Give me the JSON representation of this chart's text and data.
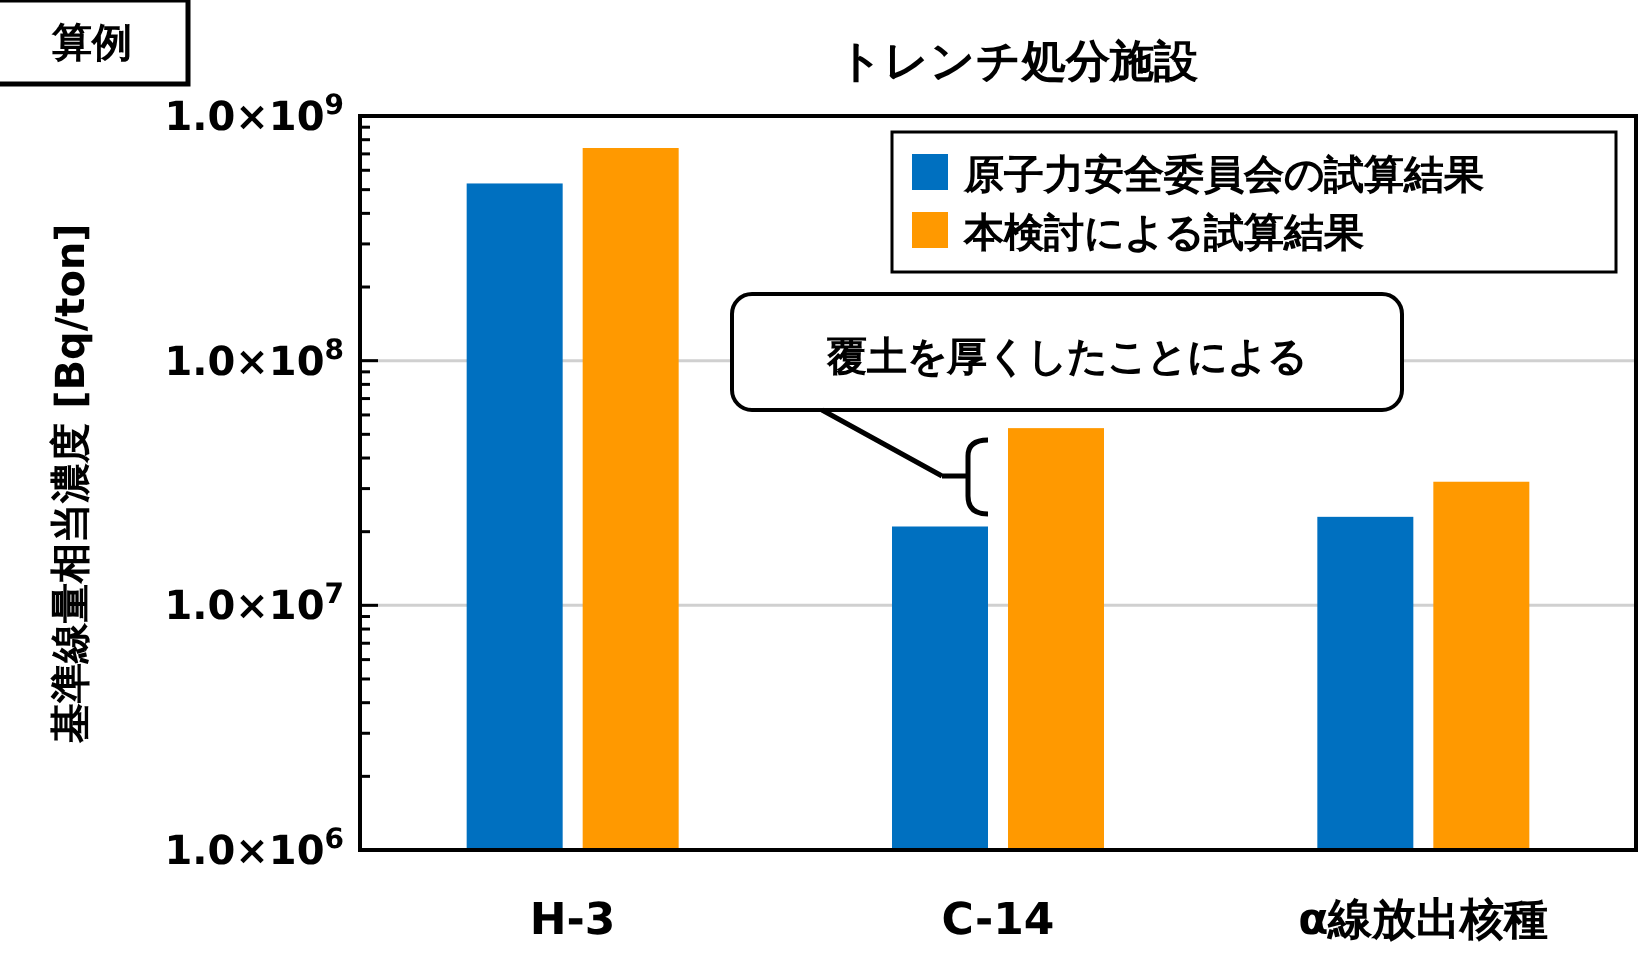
{
  "chart_data": {
    "type": "bar",
    "title": "トレンチ処分施設",
    "ylabel": "基準線量相当濃度 [Bq/ton]",
    "categories": [
      "H-3",
      "C-14",
      "α線放出核種"
    ],
    "series": [
      {
        "name": "原子力安全委員会の試算結果",
        "color": "#0070c0",
        "values": [
          530000000,
          21000000,
          23000000
        ]
      },
      {
        "name": "本検討による試算結果",
        "color": "#ff9900",
        "values": [
          740000000,
          53000000,
          32000000
        ]
      }
    ],
    "log": "y",
    "ylim": [
      1000000,
      1000000000
    ],
    "yticks": [
      {
        "value": 1000000,
        "label": "1.0×10$^{6}$"
      },
      {
        "value": 10000000,
        "label": "1.0×10$^{7}$"
      },
      {
        "value": 100000000,
        "label": "1.0×10$^{8}$"
      },
      {
        "value": 1000000000,
        "label": "1.0×10$^{9}$"
      }
    ],
    "grid": "y",
    "legend": "top right",
    "annotations": [
      "算例",
      "覆土を厚くしたことによる"
    ]
  }
}
